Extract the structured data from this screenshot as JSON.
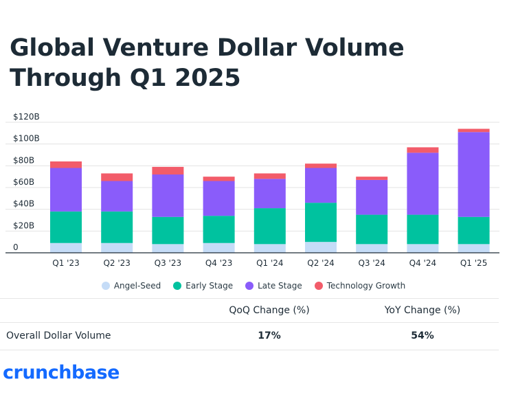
{
  "title": "Global Venture Dollar Volume Through Q1 2025",
  "chart_data": {
    "type": "bar",
    "stacked": true,
    "categories": [
      "Q1 '23",
      "Q2 '23",
      "Q3 '23",
      "Q4 '23",
      "Q1 '24",
      "Q2 '24",
      "Q3 '24",
      "Q4 '24",
      "Q1 '25"
    ],
    "series": [
      {
        "name": "Angel-Seed",
        "color": "#c5dcf7",
        "values": [
          9,
          9,
          8,
          9,
          8,
          10,
          8,
          8,
          8
        ]
      },
      {
        "name": "Early Stage",
        "color": "#00c29f",
        "values": [
          29,
          29,
          25,
          25,
          33,
          36,
          27,
          27,
          25
        ]
      },
      {
        "name": "Late Stage",
        "color": "#8a5cfa",
        "values": [
          40,
          28,
          39,
          32,
          27,
          32,
          32,
          57,
          78
        ]
      },
      {
        "name": "Technology Growth",
        "color": "#f25c6a",
        "values": [
          6,
          7,
          7,
          4,
          5,
          4,
          3,
          5,
          3
        ]
      }
    ],
    "yticks": [
      "0",
      "$20B",
      "$40B",
      "$60B",
      "$80B",
      "$100B",
      "$120B"
    ],
    "ylim": [
      0,
      120
    ],
    "grid": true,
    "legend_position": "bottom"
  },
  "table": {
    "headers": [
      "QoQ Change (%)",
      "YoY Change (%)"
    ],
    "row_label": "Overall Dollar Volume",
    "values": [
      "17%",
      "54%"
    ]
  },
  "logo": "crunchbase"
}
